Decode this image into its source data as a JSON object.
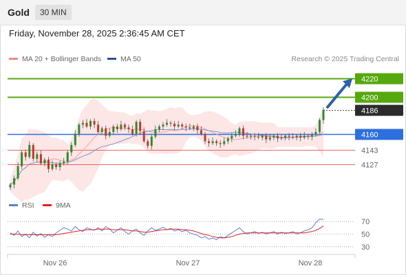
{
  "header": {
    "instrument": "Gold",
    "timeframe": "30 MIN",
    "datetime": "Friday, November 28, 2025 2:36:45 AM CET"
  },
  "legend": {
    "items": [
      {
        "label": "MA 20 + Bollinger Bands",
        "color": "#f08a84"
      },
      {
        "label": "MA 50",
        "color": "#2f4e8b"
      }
    ],
    "copyright": "Research © 2025 Trading Central"
  },
  "rsi_legend": {
    "items": [
      {
        "label": "RSI",
        "color": "#5b7fd6"
      },
      {
        "label": "9MA",
        "color": "#e31e24"
      }
    ]
  },
  "chart_data": [
    {
      "type": "candlestick",
      "title": "Gold",
      "ylim": [
        4098,
        4232
      ],
      "x_ticks": [
        "Nov 26",
        "Nov 27",
        "Nov 28"
      ],
      "close_series": [
        4105,
        4112,
        4125,
        4140,
        4135,
        4148,
        4133,
        4138,
        4128,
        4132,
        4122,
        4127,
        4124,
        4128,
        4130,
        4140,
        4148,
        4160,
        4170,
        4172,
        4168,
        4174,
        4170,
        4162,
        4166,
        4158,
        4162,
        4168,
        4165,
        4170,
        4167,
        4165,
        4160,
        4173,
        4163,
        4152,
        4147,
        4157,
        4165,
        4168,
        4170,
        4172,
        4171,
        4168,
        4170,
        4168,
        4167,
        4166,
        4168,
        4164,
        4160,
        4152,
        4150,
        4152,
        4150,
        4149,
        4152,
        4155,
        4158,
        4160,
        4166,
        4158,
        4157,
        4158,
        4157,
        4156,
        4158,
        4154,
        4156,
        4158,
        4155,
        4156,
        4158,
        4157,
        4156,
        4158,
        4156,
        4158,
        4157,
        4159,
        4162,
        4175,
        4186
      ],
      "levels": [
        {
          "value": 4220,
          "label": "4220",
          "style": "resistance-target",
          "color": "#55a80e"
        },
        {
          "value": 4200,
          "label": "4200",
          "style": "resistance",
          "color": "#55a80e"
        },
        {
          "value": 4186,
          "label": "4186",
          "style": "last-price",
          "color": "#2b2b2b"
        },
        {
          "value": 4160,
          "label": "4160",
          "style": "pivot",
          "color": "#2e6fe0"
        },
        {
          "value": 4143,
          "label": "4143",
          "style": "support",
          "color": "#e0453a"
        },
        {
          "value": 4127,
          "label": "4127",
          "style": "support",
          "color": "#e0453a"
        }
      ],
      "arrow": {
        "from": 4186,
        "to": 4220,
        "direction": "up"
      }
    },
    {
      "type": "line",
      "title": "RSI",
      "ylim": [
        20,
        80
      ],
      "y_ticks": [
        70,
        50,
        30
      ],
      "series": [
        {
          "name": "RSI",
          "values": [
            52,
            48,
            55,
            46,
            50,
            44,
            53,
            47,
            51,
            45,
            49,
            46,
            52,
            56,
            60,
            58,
            55,
            62,
            57,
            54,
            60,
            58,
            56,
            60,
            55,
            62,
            58,
            52,
            56,
            60,
            54,
            50,
            55,
            58,
            52,
            48,
            55,
            60,
            56,
            58,
            61,
            57,
            59,
            55,
            57,
            54,
            56,
            52,
            50,
            48,
            44,
            46,
            42,
            44,
            41,
            46,
            44,
            48,
            52,
            56,
            60,
            54,
            50,
            52,
            54,
            51,
            53,
            50,
            52,
            54,
            50,
            53,
            51,
            52,
            54,
            50,
            52,
            55,
            57,
            60,
            68,
            74,
            73
          ]
        },
        {
          "name": "9MA",
          "values": [
            50,
            50,
            50,
            49,
            49,
            49,
            49,
            49,
            49,
            49,
            49,
            49,
            49,
            50,
            51,
            52,
            53,
            54,
            55,
            56,
            57,
            57,
            57,
            58,
            58,
            58,
            58,
            57,
            57,
            57,
            57,
            56,
            55,
            55,
            54,
            53,
            53,
            54,
            55,
            56,
            57,
            57,
            58,
            58,
            58,
            57,
            57,
            56,
            55,
            53,
            51,
            49,
            48,
            46,
            45,
            44,
            44,
            45,
            46,
            48,
            50,
            51,
            52,
            52,
            52,
            52,
            52,
            52,
            52,
            52,
            52,
            52,
            52,
            52,
            52,
            52,
            52,
            52,
            53,
            54,
            56,
            59,
            63
          ]
        }
      ]
    }
  ]
}
